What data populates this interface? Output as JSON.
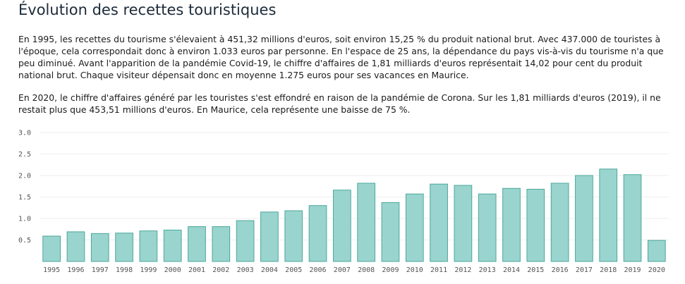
{
  "page": {
    "title": "Évolution des recettes touristiques",
    "paragraph_1": "En 1995, les recettes du tourisme s'élevaient à 451,32 millions d'euros, soit environ 15,25 % du produit national brut. Avec 437.000 de touristes à l'époque, cela correspondait donc à environ 1.033 euros par personne. En l'espace de 25 ans, la dépendance du pays vis-à-vis du tourisme n'a que peu diminué. Avant l'apparition de la pandémie Covid-19, le chiffre d'affaires de 1,81 milliards d'euros représentait 14,02 pour cent du produit national brut. Chaque visiteur dépensait donc en moyenne 1.275 euros pour ses vacances en Maurice.",
    "paragraph_2": "En 2020, le chiffre d'affaires généré par les touristes s'est effondré en raison de la pandémie de Corona. Sur les 1,81 milliards d'euros (2019), il ne restait plus que 453,51 millions d'euros. En Maurice, cela représente une baisse de 75 %."
  },
  "chart_data": {
    "type": "bar",
    "title": "",
    "xlabel": "",
    "ylabel": "",
    "ylim": [
      0,
      3.0
    ],
    "yticks": [
      0.5,
      1.0,
      1.5,
      2.0,
      2.5,
      3.0
    ],
    "ytick_labels": [
      "0.5",
      "1.0",
      "1.5",
      "2.0",
      "2.5",
      "3.0"
    ],
    "grid": true,
    "legend": false,
    "bar_color": "#9ad4ce",
    "bar_edge_color": "#4aa89c",
    "categories": [
      "1995",
      "1996",
      "1997",
      "1998",
      "1999",
      "2000",
      "2001",
      "2002",
      "2003",
      "2004",
      "2005",
      "2006",
      "2007",
      "2008",
      "2009",
      "2010",
      "2011",
      "2012",
      "2013",
      "2014",
      "2015",
      "2016",
      "2017",
      "2018",
      "2019",
      "2020"
    ],
    "values": [
      0.59,
      0.69,
      0.65,
      0.66,
      0.71,
      0.73,
      0.81,
      0.81,
      0.95,
      1.15,
      1.18,
      1.3,
      1.66,
      1.82,
      1.37,
      1.57,
      1.8,
      1.77,
      1.57,
      1.7,
      1.68,
      1.82,
      2.0,
      2.15,
      2.02,
      0.49
    ]
  }
}
